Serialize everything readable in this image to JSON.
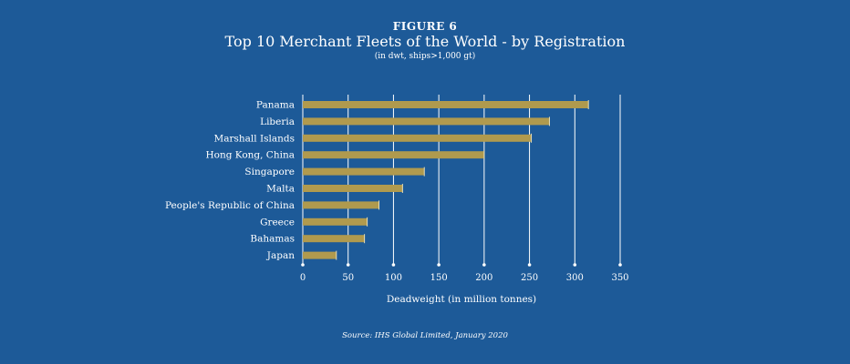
{
  "figure_label": "FIGURE 6",
  "source": "Source: IHS Global Limited, January 2020",
  "colors": {
    "background": "#1d5a98",
    "bar": "#b09a4e",
    "bar_edge": "#e8dfb8",
    "grid": "#ffffff",
    "text": "#ffffff"
  },
  "chart_data": {
    "type": "bar",
    "orientation": "horizontal",
    "title": "Top 10 Merchant Fleets of the World - by Registration",
    "subtitle": "(in dwt, ships>1,000 gt)",
    "xlabel": "Deadweight (in million tonnes)",
    "ylabel": "",
    "categories": [
      "Panama",
      "Liberia",
      "Marshall Islands",
      "Hong Kong, China",
      "Singapore",
      "Malta",
      "People's Republic of China",
      "Greece",
      "Bahamas",
      "Japan"
    ],
    "values": [
      315,
      272,
      252,
      200,
      134,
      110,
      84,
      71,
      68,
      37
    ],
    "xlim": [
      0,
      350
    ],
    "xticks": [
      0,
      50,
      100,
      150,
      200,
      250,
      300,
      350
    ],
    "grid": "vertical",
    "legend": "none"
  }
}
